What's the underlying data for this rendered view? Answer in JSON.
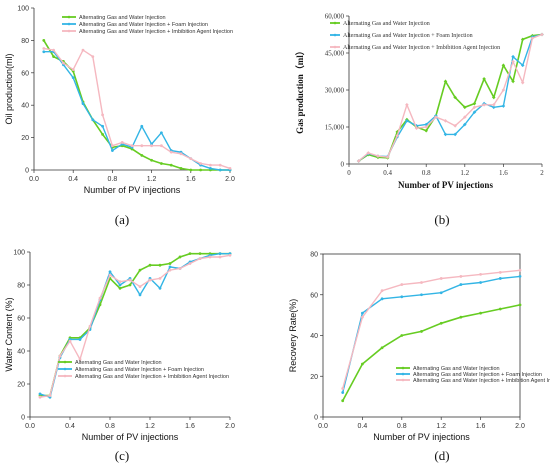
{
  "colors": {
    "series1": "#66cc22",
    "series2": "#33b5e5",
    "series3": "#f5b8c0"
  },
  "chart_data": [
    {
      "type": "line",
      "panel_label": "(a)",
      "xlabel": "Number of PV injections",
      "ylabel": "Oil production(ml)",
      "xlim": [
        0,
        2.0
      ],
      "ylim": [
        0,
        100
      ],
      "xticks": [
        0,
        0.4,
        0.8,
        1.2,
        1.6,
        2.0
      ],
      "xtick_labels": [
        "0.0",
        "0.4",
        "0.8",
        "1.2",
        "1.6",
        "2.0"
      ],
      "yticks": [
        0,
        20,
        40,
        60,
        80,
        100
      ],
      "ytick_labels": [
        "0",
        "20",
        "40",
        "60",
        "80",
        "100"
      ],
      "legend_position": "top-right",
      "series": [
        {
          "name": "Alternating Gas and Water Injection",
          "x": [
            0.1,
            0.2,
            0.3,
            0.4,
            0.5,
            0.6,
            0.7,
            0.8,
            0.9,
            1.0,
            1.1,
            1.2,
            1.3,
            1.4,
            1.5,
            1.6,
            1.7,
            1.8,
            1.9,
            2.0
          ],
          "y": [
            80,
            70,
            67,
            61,
            42,
            31,
            22,
            14,
            15,
            13,
            9,
            6,
            4,
            3,
            1,
            0,
            0,
            0,
            0,
            0
          ]
        },
        {
          "name": "Alternating Gas and Water Injection + Foam Injection",
          "x": [
            0.1,
            0.2,
            0.3,
            0.4,
            0.5,
            0.6,
            0.7,
            0.8,
            0.9,
            1.0,
            1.1,
            1.2,
            1.3,
            1.4,
            1.5,
            1.6,
            1.7,
            1.8,
            1.9,
            2.0
          ],
          "y": [
            73,
            73,
            65,
            57,
            41,
            31,
            27,
            12,
            16,
            14,
            27,
            16,
            23,
            12,
            11,
            7,
            3,
            1,
            0,
            0
          ]
        },
        {
          "name": "Alternating Gas and Water Injection + Imbibition Agent Injection",
          "x": [
            0.1,
            0.2,
            0.3,
            0.4,
            0.5,
            0.6,
            0.7,
            0.8,
            0.9,
            1.0,
            1.1,
            1.2,
            1.3,
            1.4,
            1.5,
            1.6,
            1.7,
            1.8,
            1.9,
            2.0
          ],
          "y": [
            75,
            74,
            66,
            62,
            74,
            70,
            34,
            15,
            17,
            15,
            15,
            15,
            15,
            11,
            10,
            7,
            4,
            3,
            3,
            1
          ]
        }
      ]
    },
    {
      "type": "line",
      "panel_label": "(b)",
      "xlabel": "Number of PV injections",
      "ylabel": "Gas production（ml）",
      "xlim": [
        0,
        2.0
      ],
      "ylim": [
        0,
        60000
      ],
      "xticks": [
        0,
        0.4,
        0.8,
        1.2,
        1.6,
        2.0
      ],
      "xtick_labels": [
        "0",
        "0.4",
        "0.8",
        "1.2",
        "1.6",
        "2"
      ],
      "yticks": [
        0,
        15000,
        30000,
        45000,
        60000
      ],
      "ytick_labels": [
        "0",
        "15,000",
        "30,000",
        "45,000",
        "60,000"
      ],
      "legend_position": "top-left",
      "series": [
        {
          "name": "Alternating Gas and Water Injection",
          "x": [
            0.1,
            0.2,
            0.3,
            0.4,
            0.5,
            0.6,
            0.7,
            0.8,
            0.9,
            1.0,
            1.1,
            1.2,
            1.3,
            1.4,
            1.5,
            1.6,
            1.7,
            1.8,
            1.9,
            2.0
          ],
          "y": [
            1200,
            3800,
            2700,
            2500,
            13000,
            18000,
            15000,
            13500,
            19500,
            33500,
            27000,
            23000,
            24500,
            34500,
            27000,
            40000,
            33500,
            50500,
            52000,
            52500
          ]
        },
        {
          "name": "Alternating Gas and Water Injection + Foam Injection",
          "x": [
            0.1,
            0.2,
            0.3,
            0.4,
            0.5,
            0.6,
            0.7,
            0.8,
            0.9,
            1.0,
            1.1,
            1.2,
            1.3,
            1.4,
            1.5,
            1.6,
            1.7,
            1.8,
            1.9,
            2.0
          ],
          "y": [
            1200,
            4200,
            3200,
            3000,
            11000,
            17500,
            15500,
            16000,
            19500,
            12000,
            12000,
            16000,
            21000,
            24500,
            23000,
            23500,
            43500,
            40000,
            51500,
            52500
          ]
        },
        {
          "name": "Alternating Gas and Water Injection + Imbibition Agent Injection",
          "x": [
            0.1,
            0.2,
            0.3,
            0.4,
            0.5,
            0.6,
            0.7,
            0.8,
            0.9,
            1.0,
            1.1,
            1.2,
            1.3,
            1.4,
            1.5,
            1.6,
            1.7,
            1.8,
            1.9,
            2.0
          ],
          "y": [
            1200,
            4500,
            3200,
            2800,
            11500,
            24000,
            14500,
            15000,
            19000,
            17500,
            15500,
            19000,
            23000,
            24000,
            24000,
            30000,
            41500,
            33000,
            51000,
            52500
          ]
        }
      ]
    },
    {
      "type": "line",
      "panel_label": "(c)",
      "xlabel": "Number of PV injections",
      "ylabel": "Water Content (%)",
      "xlim": [
        0,
        2.0
      ],
      "ylim": [
        0,
        100
      ],
      "xticks": [
        0,
        0.4,
        0.8,
        1.2,
        1.6,
        2.0
      ],
      "xtick_labels": [
        "0.0",
        "0.4",
        "0.8",
        "1.2",
        "1.6",
        "2.0"
      ],
      "yticks": [
        0,
        20,
        40,
        60,
        80,
        100
      ],
      "ytick_labels": [
        "0",
        "20",
        "40",
        "60",
        "80",
        "100"
      ],
      "legend_position": "bottom-left",
      "series": [
        {
          "name": "Alternating Gas and Water Injection",
          "x": [
            0.1,
            0.2,
            0.3,
            0.4,
            0.5,
            0.6,
            0.7,
            0.8,
            0.9,
            1.0,
            1.1,
            1.2,
            1.3,
            1.4,
            1.5,
            1.6,
            1.7,
            1.8,
            1.9,
            2.0
          ],
          "y": [
            13,
            13,
            37,
            48,
            48,
            54,
            68,
            84,
            78,
            80,
            89,
            92,
            92,
            93,
            97,
            99,
            99,
            99,
            99,
            99
          ]
        },
        {
          "name": "Alternating Gas and Water Injection + Foam Injection",
          "x": [
            0.1,
            0.2,
            0.3,
            0.4,
            0.5,
            0.6,
            0.7,
            0.8,
            0.9,
            1.0,
            1.1,
            1.2,
            1.3,
            1.4,
            1.5,
            1.6,
            1.7,
            1.8,
            1.9,
            2.0
          ],
          "y": [
            14,
            12,
            36,
            47,
            47,
            53,
            71,
            88,
            80,
            84,
            74,
            84,
            78,
            91,
            90,
            94,
            96,
            98,
            99,
            99
          ]
        },
        {
          "name": "Alternating Gas and Water Injection + Imbibition Agent Injection",
          "x": [
            0.1,
            0.2,
            0.3,
            0.4,
            0.5,
            0.6,
            0.7,
            0.8,
            0.9,
            1.0,
            1.1,
            1.2,
            1.3,
            1.4,
            1.5,
            1.6,
            1.7,
            1.8,
            1.9,
            2.0
          ],
          "y": [
            12,
            13,
            37,
            46,
            35,
            55,
            72,
            86,
            82,
            83,
            79,
            83,
            84,
            89,
            90,
            93,
            96,
            97,
            97,
            98
          ]
        }
      ]
    },
    {
      "type": "line",
      "panel_label": "(d)",
      "xlabel": "Number of PV injections",
      "ylabel": "Recovery Rate(%)",
      "xlim": [
        0,
        2.0
      ],
      "ylim": [
        0,
        80
      ],
      "xticks": [
        0,
        0.4,
        0.8,
        1.2,
        1.6,
        2.0
      ],
      "xtick_labels": [
        "0.0",
        "0.4",
        "0.8",
        "1.2",
        "1.6",
        "2.0"
      ],
      "yticks": [
        0,
        20,
        40,
        60,
        80
      ],
      "ytick_labels": [
        "0",
        "20",
        "40",
        "60",
        "80"
      ],
      "legend_position": "bottom-right",
      "series": [
        {
          "name": "Alternating Gas and Water Injection",
          "x": [
            0.2,
            0.4,
            0.6,
            0.8,
            1.0,
            1.2,
            1.4,
            1.6,
            1.8,
            2.0
          ],
          "y": [
            8,
            26,
            34,
            40,
            42,
            46,
            49,
            51,
            53,
            55
          ]
        },
        {
          "name": "Alternating Gas and Water Injection + Foam Injection",
          "x": [
            0.2,
            0.4,
            0.6,
            0.8,
            1.0,
            1.2,
            1.4,
            1.6,
            1.8,
            2.0
          ],
          "y": [
            12,
            51,
            58,
            59,
            60,
            61,
            65,
            66,
            68,
            69
          ]
        },
        {
          "name": "Alternating Gas and Water Injection + Imbibition Agent Injection",
          "x": [
            0.2,
            0.4,
            0.6,
            0.8,
            1.0,
            1.2,
            1.4,
            1.6,
            1.8,
            2.0
          ],
          "y": [
            14,
            49,
            62,
            65,
            66,
            68,
            69,
            70,
            71,
            72
          ]
        }
      ]
    }
  ]
}
